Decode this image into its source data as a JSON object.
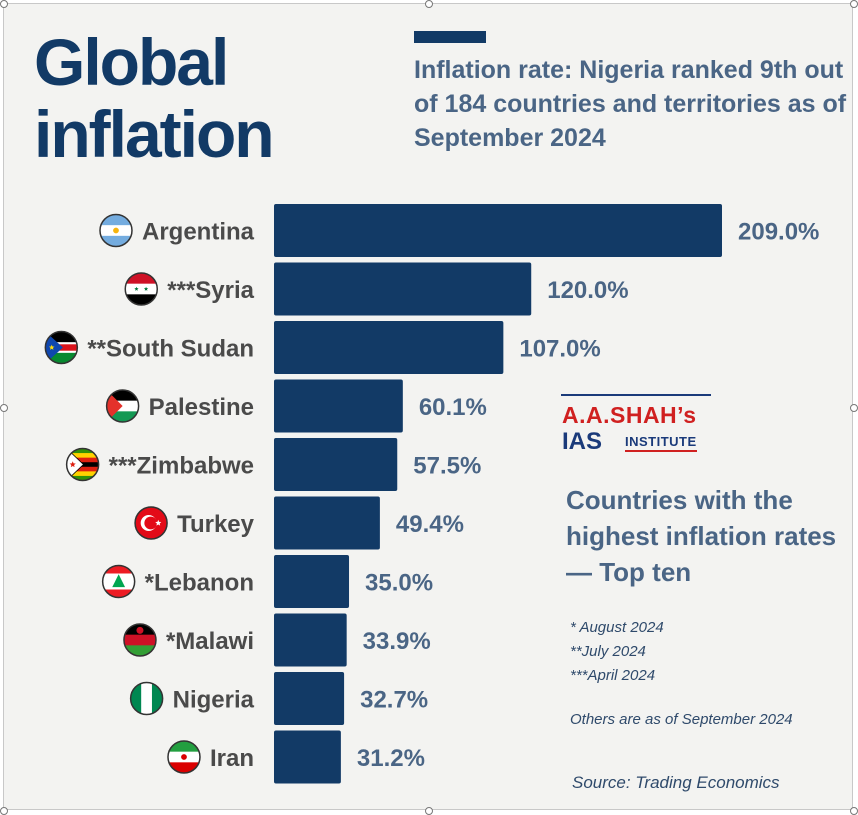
{
  "title": "Global inflation",
  "subtitle": "Inflation rate: Nigeria ranked 9th out of 184 countries and territories as of September 2024",
  "side_title": "Countries with the highest inflation rates — Top ten",
  "notes": [
    "*  August 2024",
    "**July 2024",
    "***April 2024"
  ],
  "others_note": "Others are as of September 2024",
  "source": "Source: Trading Economics",
  "logo": {
    "line1": "A.A.SHAH’s",
    "line2": "IAS",
    "line3": "INSTITUTE"
  },
  "colors": {
    "bar": "#123a66",
    "label": "#4a4a4a",
    "value": "#4a6585",
    "background": "#f3f3f1"
  },
  "chart_data": {
    "type": "bar",
    "orientation": "horizontal",
    "categories": [
      "Argentina",
      "***Syria",
      "**South Sudan",
      "Palestine",
      "***Zimbabwe",
      "Turkey",
      "*Lebanon",
      "*Malawi",
      "Nigeria",
      "Iran"
    ],
    "values": [
      209.0,
      120.0,
      107.0,
      60.1,
      57.5,
      49.4,
      35.0,
      33.9,
      32.7,
      31.2
    ],
    "value_labels": [
      "209.0%",
      "120.0%",
      "107.0%",
      "60.1%",
      "57.5%",
      "49.4%",
      "35.0%",
      "33.9%",
      "32.7%",
      "31.2%"
    ],
    "flag_icons": [
      "argentina-flag-icon",
      "syria-flag-icon",
      "south-sudan-flag-icon",
      "palestine-flag-icon",
      "zimbabwe-flag-icon",
      "turkey-flag-icon",
      "lebanon-flag-icon",
      "malawi-flag-icon",
      "nigeria-flag-icon",
      "iran-flag-icon"
    ],
    "xlim": [
      0,
      209.0
    ],
    "grid": false,
    "legend": "none"
  }
}
